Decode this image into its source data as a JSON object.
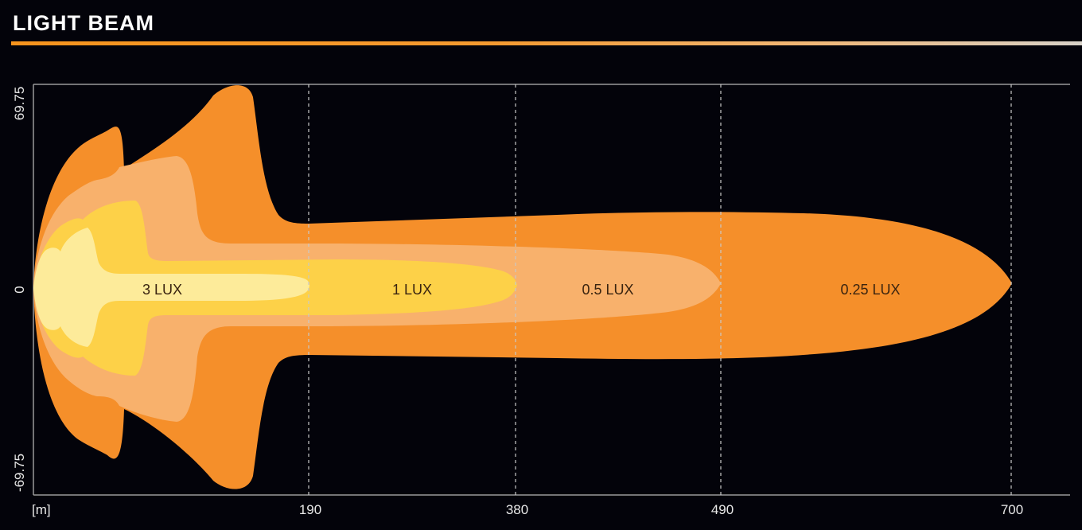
{
  "header": {
    "title": "LIGHT BEAM"
  },
  "colors": {
    "zone_025": "#f58f2a",
    "zone_05": "#f8b16c",
    "zone_1": "#fdd148",
    "zone_3": "#fdeb9a",
    "accent": "#f7941d"
  },
  "chart_data": {
    "type": "area",
    "title": "LIGHT BEAM",
    "x_unit_label": "[m]",
    "x_ticks": [
      190,
      380,
      490,
      700
    ],
    "y_ticks": [
      "69.75",
      "0",
      "-69.75"
    ],
    "xlim": [
      0,
      700
    ],
    "ylim": [
      -69.75,
      69.75
    ],
    "grid": "vertical dashed at x ticks",
    "series": [
      {
        "name": "0.25 LUX",
        "max_range_m": 700,
        "color": "#f58f2a"
      },
      {
        "name": "0.5 LUX",
        "max_range_m": 490,
        "color": "#f8b16c"
      },
      {
        "name": "1 LUX",
        "max_range_m": 380,
        "color": "#fdd148"
      },
      {
        "name": "3 LUX",
        "max_range_m": 190,
        "color": "#fdeb9a"
      }
    ]
  }
}
